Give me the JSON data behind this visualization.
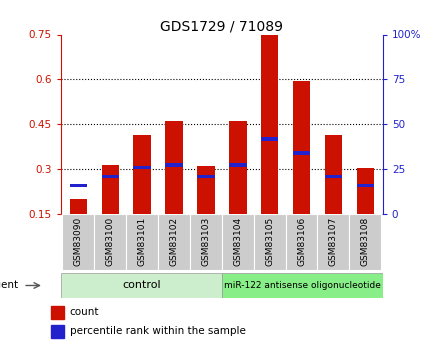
{
  "title": "GDS1729 / 71089",
  "samples": [
    "GSM83090",
    "GSM83100",
    "GSM83101",
    "GSM83102",
    "GSM83103",
    "GSM83104",
    "GSM83105",
    "GSM83106",
    "GSM83107",
    "GSM83108"
  ],
  "red_values": [
    0.2,
    0.315,
    0.415,
    0.46,
    0.31,
    0.46,
    0.75,
    0.595,
    0.415,
    0.305
  ],
  "blue_values": [
    0.245,
    0.275,
    0.305,
    0.315,
    0.275,
    0.315,
    0.4,
    0.355,
    0.275,
    0.245
  ],
  "ylim_left": [
    0.15,
    0.75
  ],
  "ylim_right": [
    0,
    100
  ],
  "yticks_left": [
    0.15,
    0.3,
    0.45,
    0.6,
    0.75
  ],
  "yticks_right": [
    0,
    25,
    50,
    75,
    100
  ],
  "control_label": "control",
  "treatment_label": "miR-122 antisense oligonucleotide",
  "agent_label": "agent",
  "legend_count": "count",
  "legend_pct": "percentile rank within the sample",
  "bar_color": "#cc1100",
  "blue_color": "#2222cc",
  "control_bg": "#cceecc",
  "treatment_bg": "#88ee88",
  "tick_bg": "#cccccc",
  "bar_width": 0.55,
  "title_fontsize": 10
}
